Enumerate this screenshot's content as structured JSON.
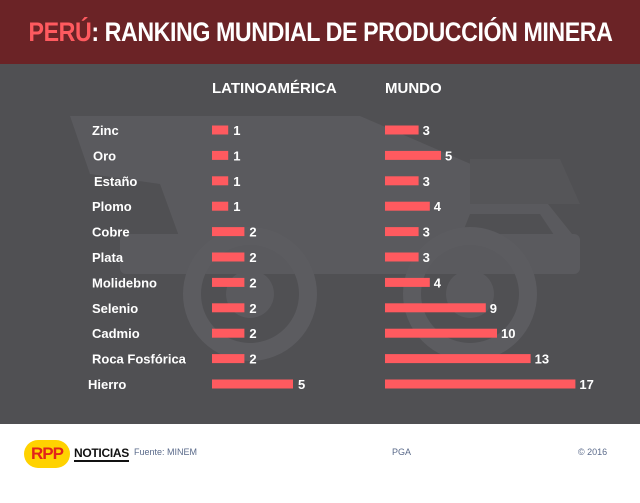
{
  "header": {
    "title_highlight": "PERÚ",
    "title_rest": ": RANKING MUNDIAL DE PRODUCCIÓN MINERA"
  },
  "colors": {
    "header_bg": "#6b2326",
    "highlight": "#ff5a5f",
    "bar": "#ff5a5f",
    "background": "#4b4b4e",
    "text": "#ffffff"
  },
  "chart_data": {
    "type": "bar",
    "orientation": "horizontal",
    "title": "PERÚ: RANKING MUNDIAL DE PRODUCCIÓN MINERA",
    "categories": [
      "Zinc",
      "Oro",
      "Estaño",
      "Plomo",
      "Cobre",
      "Plata",
      "Molidebno",
      "Selenio",
      "Cadmio",
      "Roca Fosfórica",
      "Hierro"
    ],
    "series": [
      {
        "name": "LATINOAMÉRICA",
        "values": [
          1,
          1,
          1,
          1,
          2,
          2,
          2,
          2,
          2,
          2,
          5
        ]
      },
      {
        "name": "MUNDO",
        "values": [
          3,
          5,
          3,
          4,
          3,
          3,
          4,
          9,
          10,
          13,
          17
        ]
      }
    ],
    "grid": false,
    "legend": "top"
  },
  "footer": {
    "logo_text": "RPP",
    "brand": "NOTICIAS",
    "source": "Fuente: MINEM",
    "author": "PGA",
    "copyright": "© 2016"
  }
}
